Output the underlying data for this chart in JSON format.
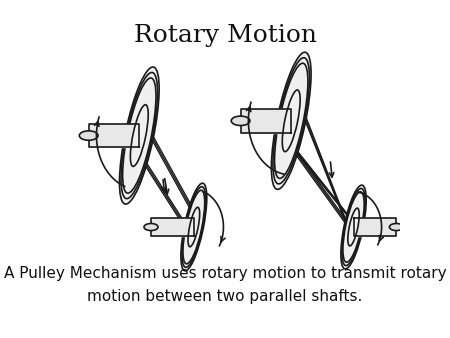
{
  "title": "Rotary Motion",
  "title_fontsize": 18,
  "title_fontfamily": "serif",
  "description": "A Pulley Mechanism uses rotary motion to transmit rotary\nmotion between two parallel shafts.",
  "description_fontsize": 11,
  "description_fontfamily": "sans-serif",
  "bg_color": "#ffffff",
  "line_color": "#1a1a1a",
  "lw": 1.2,
  "fig_width": 4.5,
  "fig_height": 3.38
}
